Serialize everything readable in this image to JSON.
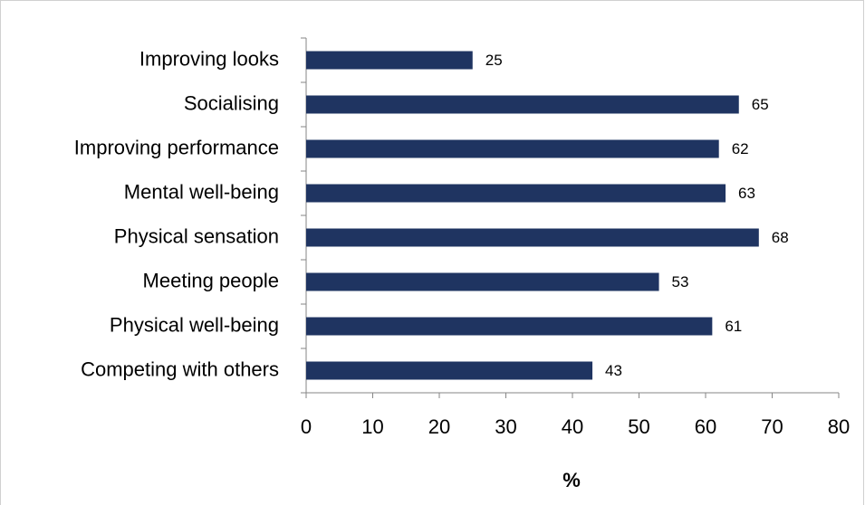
{
  "chart_data": {
    "type": "bar",
    "orientation": "horizontal",
    "x_label": "%",
    "categories": [
      "Improving looks",
      "Socialising",
      "Improving performance",
      "Mental well-being",
      "Physical sensation",
      "Meeting people",
      "Physical well-being",
      "Competing with others"
    ],
    "values": [
      25,
      65,
      62,
      63,
      68,
      53,
      61,
      43
    ],
    "color": "#1f3461",
    "xlim": [
      0,
      80
    ],
    "xticks": [
      0,
      10,
      20,
      30,
      40,
      50,
      60,
      70,
      80
    ],
    "grid": false
  }
}
